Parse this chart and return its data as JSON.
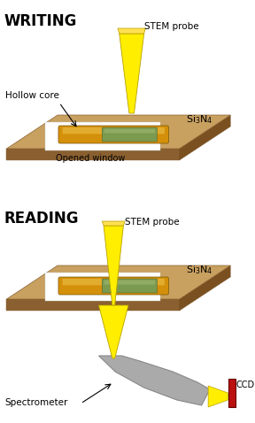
{
  "bg_color": "#ffffff",
  "title_writing": "WRITING",
  "title_reading": "READING",
  "stem_probe_label": "STEM probe",
  "si3n4_label": "Si$_3$N$_4$",
  "hollow_core_label": "Hollow core",
  "opened_window_label": "Opened window",
  "spectrometer_label": "Spectrometer",
  "ccd_label": "CCD",
  "plate_color": "#c8a060",
  "plate_edge": "#8a6030",
  "plate_bottom": "#7a5020",
  "window_color": "#ffffff",
  "nanorod_gold": "#d4900a",
  "nanorod_highlight": "#e8b840",
  "nanorod_green": "#7a9a50",
  "nanorod_green_light": "#a0b870",
  "stem_yellow": "#ffee00",
  "stem_yellow2": "#ffe050",
  "stem_outline": "#b8a000",
  "ccd_red": "#bb1111",
  "spectrometer_gray": "#aaaaaa",
  "spectrometer_dark": "#888888",
  "spectrometer_light": "#cccccc"
}
